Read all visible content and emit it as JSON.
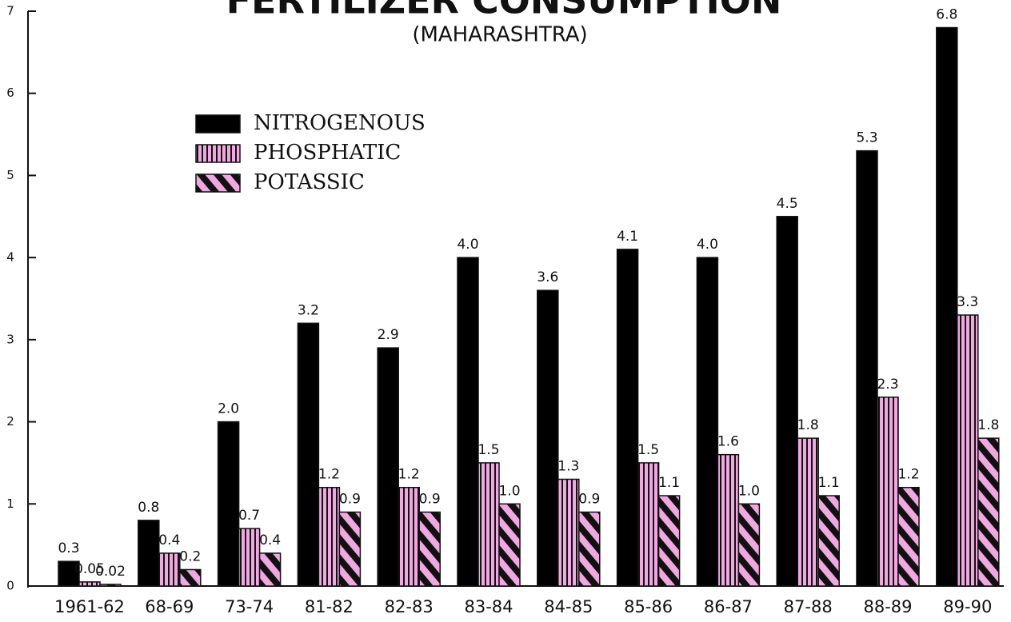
{
  "chart_data": {
    "type": "bar",
    "title": "FERTILIZER CONSUMPTION",
    "subtitle": "(MAHARASHTRA)",
    "categories": [
      "1961-62",
      "68-69",
      "73-74",
      "81-82",
      "82-83",
      "83-84",
      "84-85",
      "85-86",
      "86-87",
      "87-88",
      "88-89",
      "89-90"
    ],
    "series": [
      {
        "name": "NITROGENOUS",
        "color": "#000000",
        "pattern": "solid",
        "values": [
          0.3,
          0.8,
          2.0,
          3.2,
          2.9,
          4.0,
          3.6,
          4.1,
          4.0,
          4.5,
          5.3,
          6.8
        ],
        "value_labels": [
          "0.3",
          "0.8",
          "2.0",
          "3.2",
          "2.9",
          "4.0",
          "3.6",
          "4.1",
          "4.0",
          "4.5",
          "5.3",
          "6.8"
        ]
      },
      {
        "name": "PHOSPHATIC",
        "color": "#f0a8e0",
        "pattern": "vertical",
        "values": [
          0.05,
          0.4,
          0.7,
          1.2,
          1.2,
          1.5,
          1.3,
          1.5,
          1.6,
          1.8,
          2.3,
          3.3
        ],
        "value_labels": [
          "0.05",
          "0.4",
          "0.7",
          "1.2",
          "1.2",
          "1.5",
          "1.3",
          "1.5",
          "1.6",
          "1.8",
          "2.3",
          "3.3"
        ]
      },
      {
        "name": "POTASSIC",
        "color": "#f0a8e0",
        "pattern": "diagonal",
        "values": [
          0.02,
          0.2,
          0.4,
          0.9,
          0.9,
          1.0,
          0.9,
          1.1,
          1.0,
          1.1,
          1.2,
          1.8
        ],
        "value_labels": [
          "0.02",
          "0.2",
          "0.4",
          "0.9",
          "0.9",
          "1.0",
          "0.9",
          "1.1",
          "1.0",
          "1.1",
          "1.2",
          "1.8"
        ]
      }
    ],
    "ylim": [
      0,
      7
    ],
    "yticks": [
      0,
      1,
      2,
      3,
      4,
      5,
      6,
      7
    ],
    "legend": "upper left",
    "grid": false
  }
}
